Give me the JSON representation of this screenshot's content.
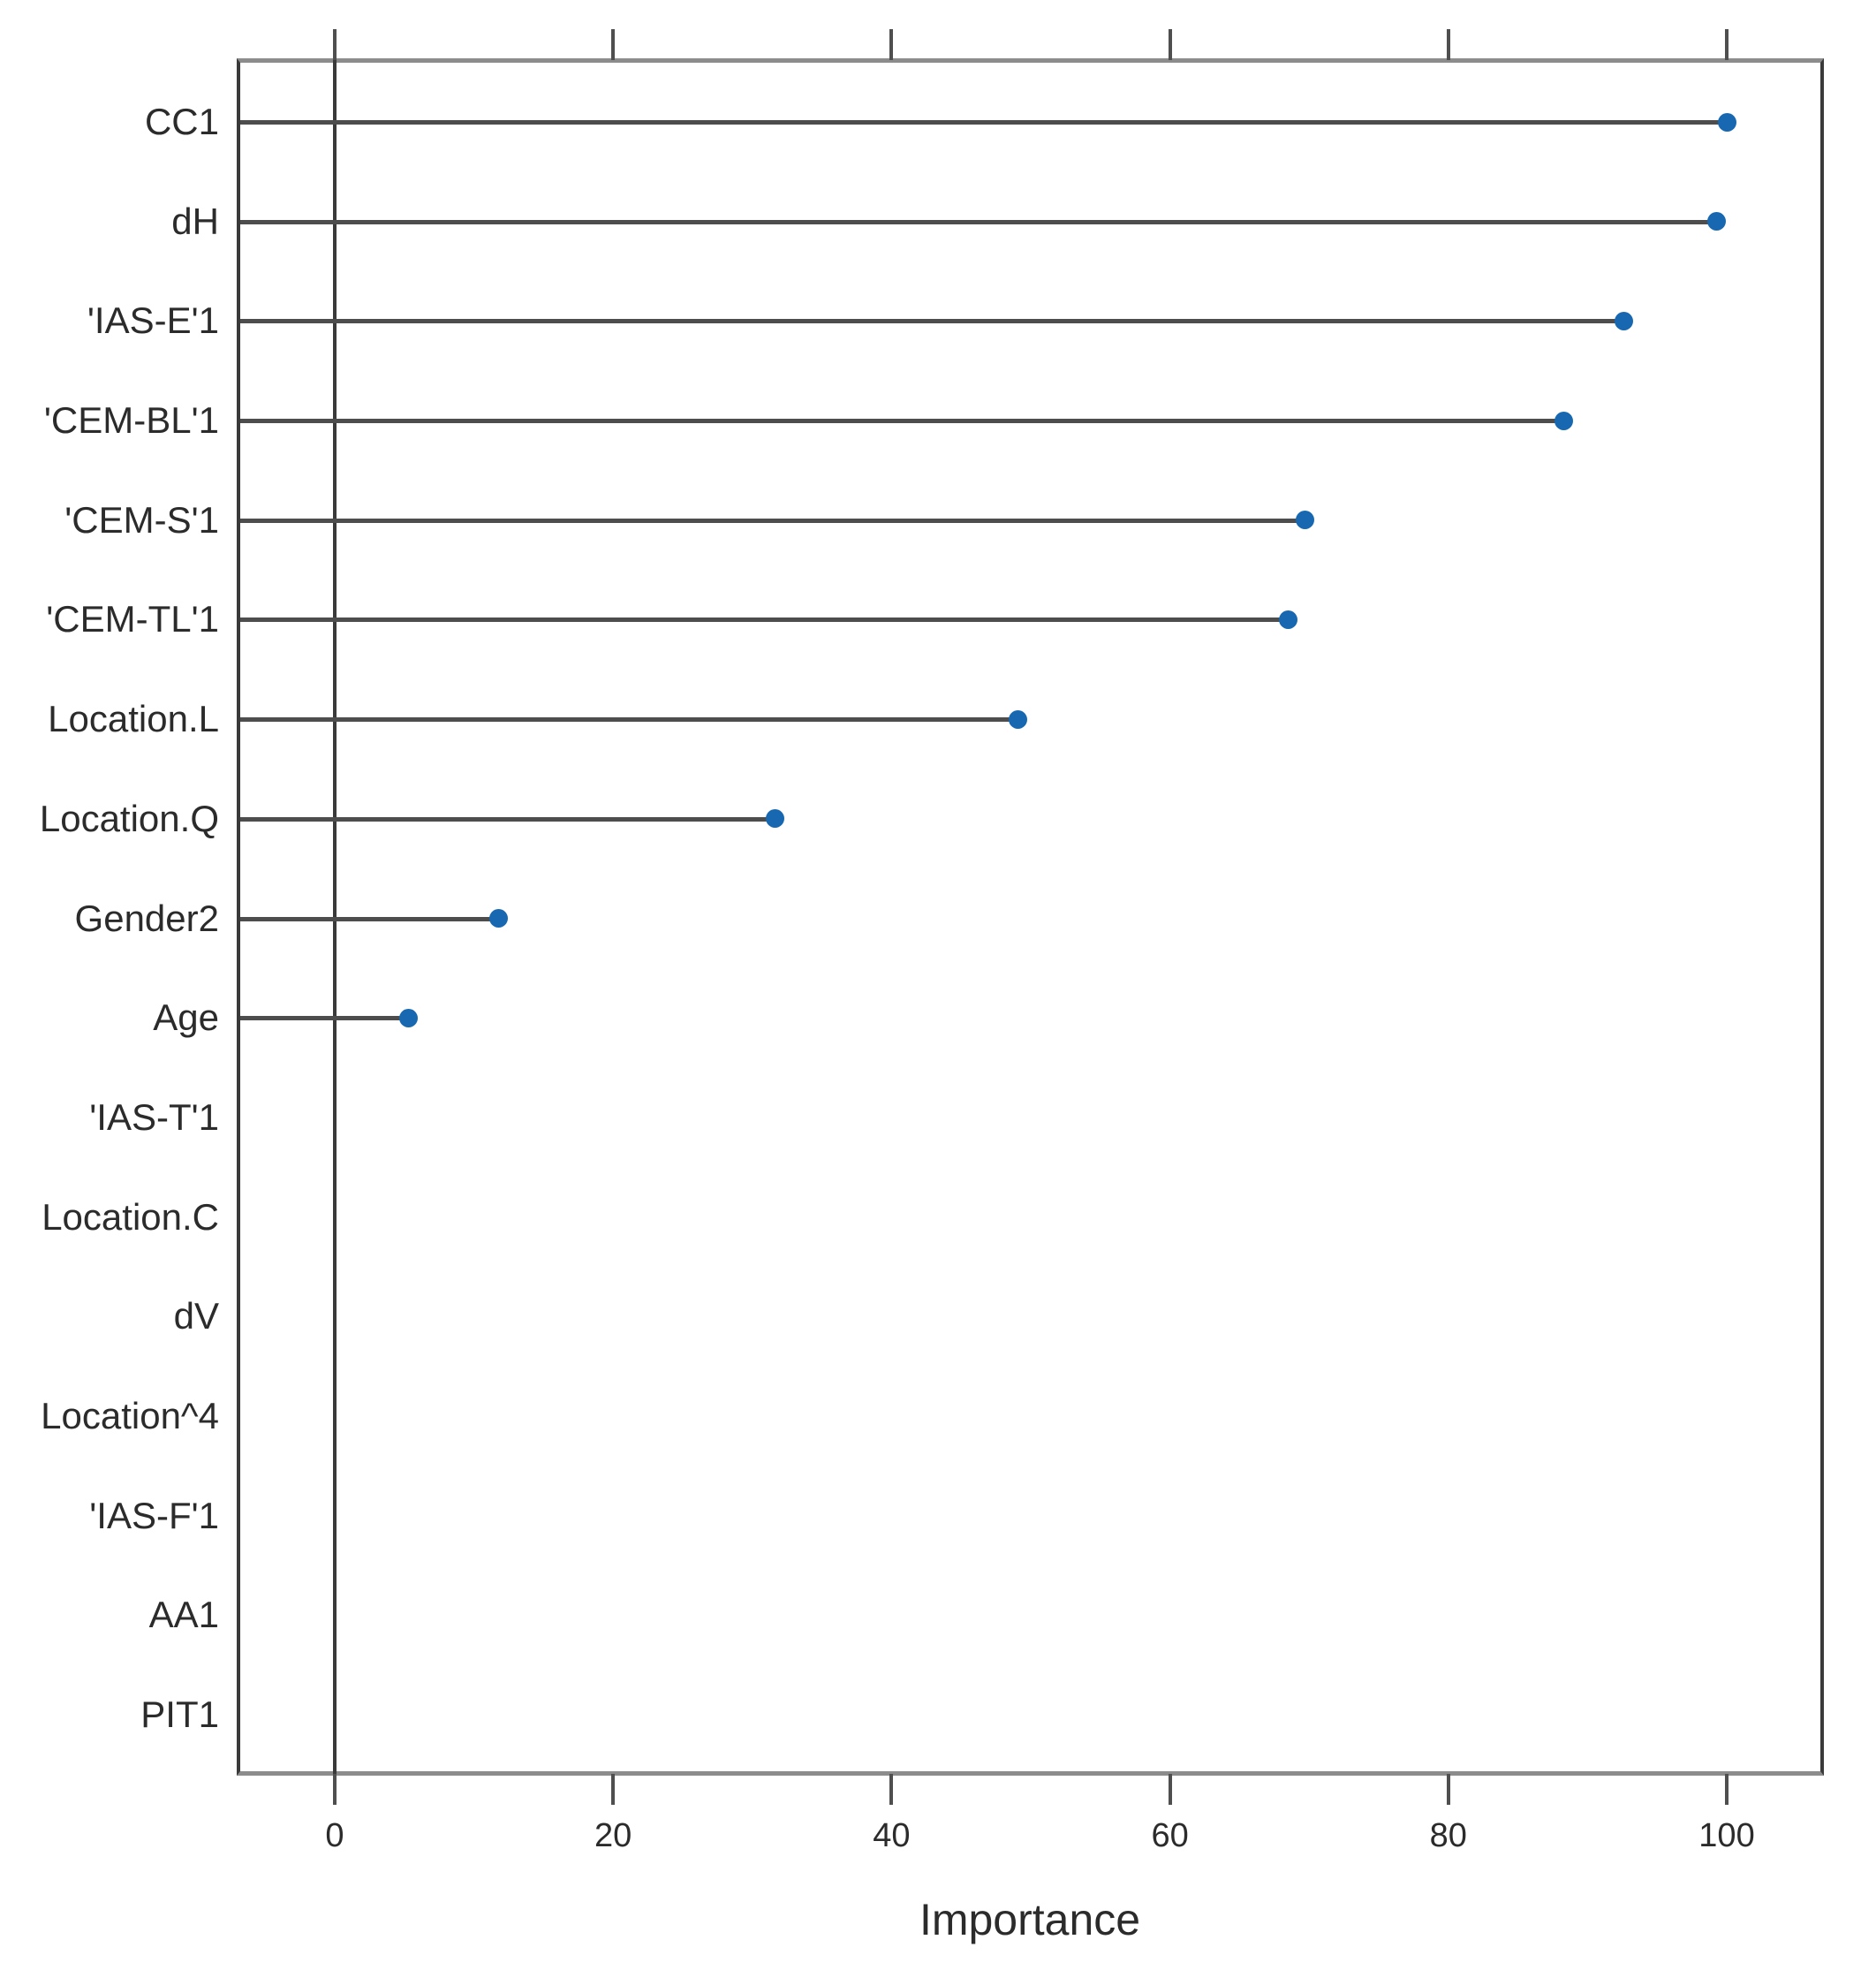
{
  "chart_data": {
    "type": "scatter",
    "variant": "horizontal-dotplot-lollipop",
    "title": "",
    "xlabel": "Importance",
    "ylabel": "",
    "orientation": "horizontal",
    "grid": false,
    "legend": null,
    "zero_reference_line": true,
    "categories": [
      "CC1",
      "dH",
      "'IAS-E'1",
      "'CEM-BL'1",
      "'CEM-S'1",
      "'CEM-TL'1",
      "Location.L",
      "Location.Q",
      "Gender2",
      "Age",
      "'IAS-T'1",
      "Location.C",
      "dV",
      "Location^4",
      "'IAS-F'1",
      "AA1",
      "PIT1"
    ],
    "values": [
      100,
      99.3,
      92.6,
      88.3,
      69.7,
      68.5,
      49.1,
      31.6,
      11.8,
      5.3,
      null,
      null,
      null,
      null,
      null,
      null,
      null
    ],
    "xlim": [
      -7,
      107
    ],
    "xticks": [
      0,
      20,
      40,
      60,
      80,
      100
    ],
    "xtick_labels": [
      "0",
      "20",
      "40",
      "60",
      "80",
      "100"
    ],
    "colors": {
      "point": "#1768b1",
      "stem": "#4d4d4d",
      "axis_top_bottom": "#8c8c8c",
      "axis_left_right": "#3a3a3a",
      "tick": "#4f4f4f",
      "text": "#2b2b2b",
      "background": "#ffffff"
    }
  }
}
